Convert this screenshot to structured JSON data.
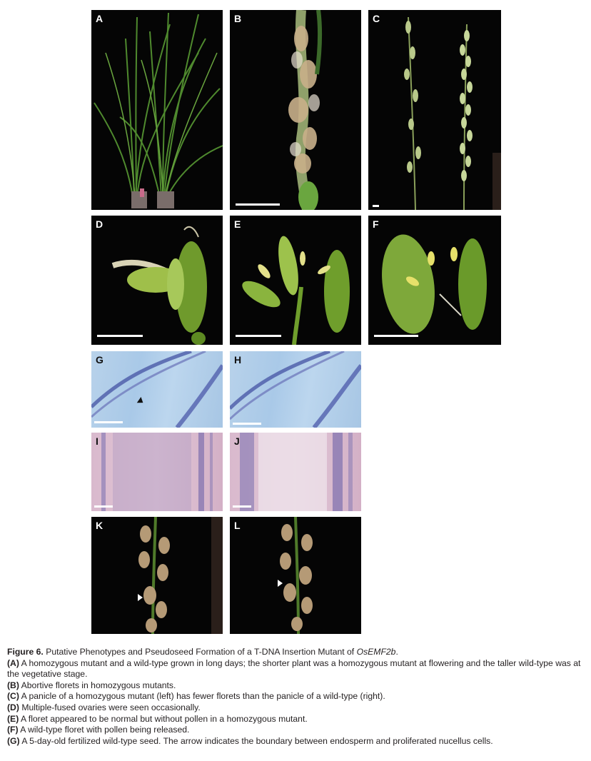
{
  "panels": {
    "A": "A",
    "B": "B",
    "C": "C",
    "D": "D",
    "E": "E",
    "F": "F",
    "G": "G",
    "H": "H",
    "I": "I",
    "J": "J",
    "K": "K",
    "L": "L"
  },
  "caption": {
    "figure_label": "Figure 6.",
    "title_text": "Putative Phenotypes and Pseudoseed Formation of a T-DNA Insertion Mutant of",
    "gene": "OsEMF2b",
    "gene_suffix": ".",
    "items": [
      {
        "key": "(A)",
        "text": "A homozygous mutant and a wild-type grown in long days; the shorter plant was a homozygous mutant at flowering and the taller wild-type was at the vegetative stage."
      },
      {
        "key": "(B)",
        "text": "Abortive florets in homozygous mutants."
      },
      {
        "key": "(C)",
        "text": "A panicle of a homozygous mutant (left) has fewer florets than the panicle of a wild-type (right)."
      },
      {
        "key": "(D)",
        "text": "Multiple-fused ovaries were seen occasionally."
      },
      {
        "key": "(E)",
        "text": "A floret appeared to be normal but without pollen in a homozygous mutant."
      },
      {
        "key": "(F)",
        "text": "A wild-type floret with pollen being released."
      },
      {
        "key": "(G)",
        "text": "A 5-day-old fertilized wild-type seed. The arrow indicates the boundary between endosperm and proliferated nucellus cells."
      }
    ]
  }
}
